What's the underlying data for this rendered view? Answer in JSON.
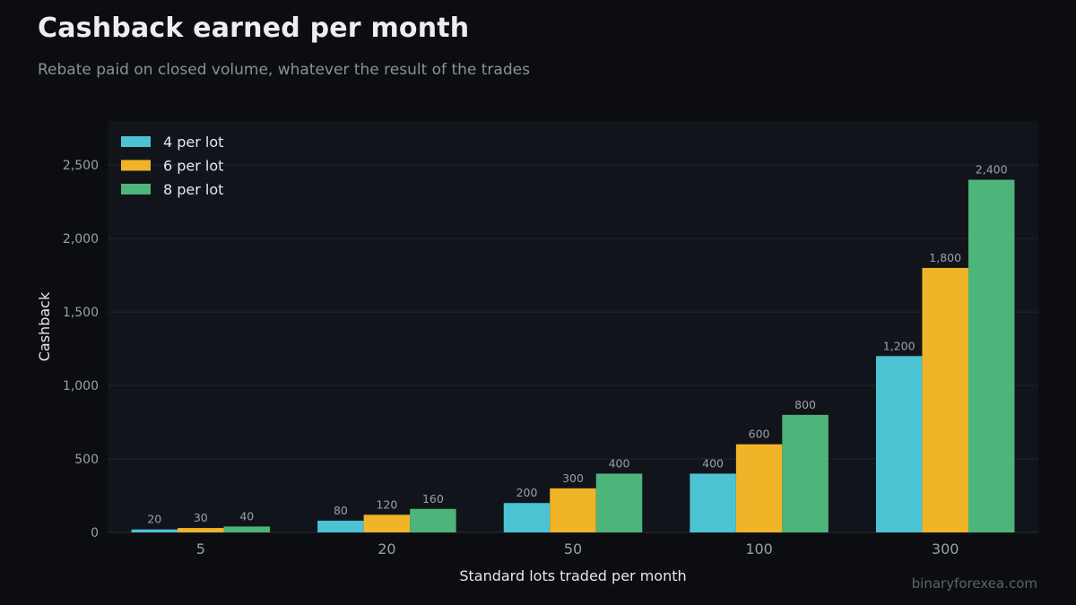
{
  "header": {
    "title": "Cashback earned per month",
    "subtitle": "Rebate paid on closed volume, whatever the result of the trades"
  },
  "watermark": "binaryforexea.com",
  "colors": {
    "background": "#0c0d10",
    "plot_background": "#11141b",
    "grid": "#23262e",
    "tick_text": "#9aa0a8",
    "axis_title": "#e6e8ec",
    "value_label": "#9aa0a8"
  },
  "chart_data": {
    "type": "bar",
    "xlabel": "Standard lots traded per month",
    "ylabel": "Cashback",
    "categories": [
      "5",
      "20",
      "50",
      "100",
      "300"
    ],
    "ylim": [
      0,
      2800
    ],
    "yticks": [
      0,
      500,
      1000,
      1500,
      2000,
      2500
    ],
    "ytick_labels": [
      "0",
      "500",
      "1,000",
      "1,500",
      "2,000",
      "2,500"
    ],
    "grid": true,
    "legend_position": "top-left",
    "series": [
      {
        "name": "4 per lot",
        "color": "#4bc3d3",
        "values": [
          20,
          80,
          200,
          400,
          1200
        ],
        "labels": [
          "20",
          "80",
          "200",
          "400",
          "1,200"
        ]
      },
      {
        "name": "6 per lot",
        "color": "#f0b429",
        "values": [
          30,
          120,
          300,
          600,
          1800
        ],
        "labels": [
          "30",
          "120",
          "300",
          "600",
          "1,800"
        ]
      },
      {
        "name": "8 per lot",
        "color": "#4db57a",
        "values": [
          40,
          160,
          400,
          800,
          2400
        ],
        "labels": [
          "40",
          "160",
          "400",
          "800",
          "2,400"
        ]
      }
    ]
  }
}
